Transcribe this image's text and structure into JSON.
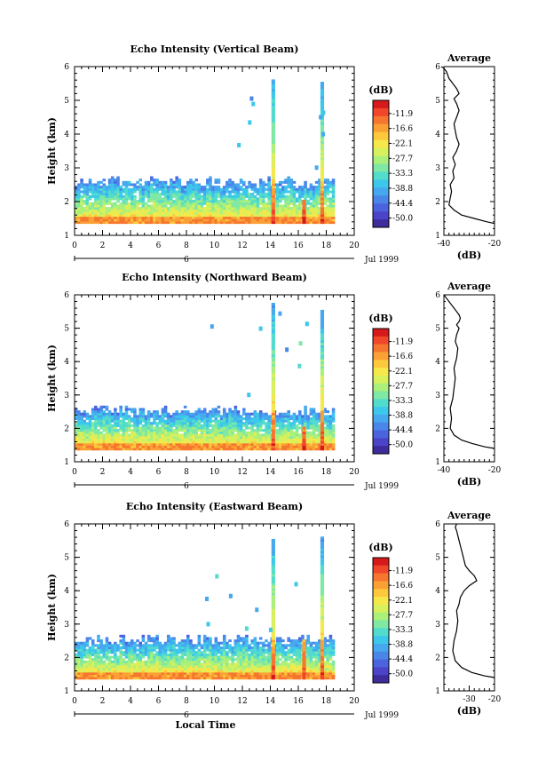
{
  "figure": {
    "date_label": "Jul 1999",
    "time_axis_label": "Local Time",
    "day_label": "6"
  },
  "colorbar": {
    "unit": "(dB)",
    "ticks": [
      "-11.9",
      "-16.6",
      "-22.1",
      "-27.7",
      "-33.3",
      "-38.8",
      "-44.4",
      "-50.0"
    ],
    "colors": [
      "#d7191c",
      "#f0462a",
      "#f6762f",
      "#fba035",
      "#fdc83c",
      "#f6e84a",
      "#d8f05c",
      "#aaf07a",
      "#7ee8a4",
      "#52dccc",
      "#3cc8ea",
      "#46a8ee",
      "#4a86ea",
      "#4b63de",
      "#4c44c8",
      "#3c2c9c"
    ]
  },
  "chart_data": [
    {
      "type": "heatmap",
      "title": "Echo Intensity (Vertical Beam)",
      "xlabel": "",
      "ylabel": "Height (km)",
      "xlim": [
        0,
        20
      ],
      "ylim": [
        1,
        6
      ],
      "xticks": [
        0,
        2,
        4,
        6,
        8,
        10,
        12,
        14,
        16,
        18,
        20
      ],
      "yticks": [
        1,
        2,
        3,
        4,
        5,
        6
      ],
      "layer_top_km": 2.55,
      "spikes": [
        {
          "time": 14.2,
          "top_km": 5.6
        },
        {
          "time": 16.4,
          "top_km": 2.0
        },
        {
          "time": 17.7,
          "top_km": 5.5
        }
      ],
      "data_end_time": 18.5,
      "color_unit": "dB"
    },
    {
      "type": "line",
      "title": "Average",
      "xlabel": "(dB)",
      "ylabel": "",
      "xlim": [
        -40,
        -20
      ],
      "xticks": [
        -40,
        -20
      ],
      "ylim": [
        1,
        6
      ],
      "yticks": [
        1,
        2,
        3,
        4,
        5,
        6
      ],
      "series": [
        {
          "x": [
            -20,
            -23,
            -28,
            -33,
            -36,
            -38,
            -37.5,
            -37,
            -37.5,
            -36,
            -36.5,
            -35.5,
            -36.5,
            -35,
            -34,
            -35,
            -35.5,
            -36,
            -35,
            -34,
            -35,
            -36,
            -34,
            -35,
            -36,
            -37,
            -38,
            -38.5,
            -39,
            -40,
            -41
          ],
          "y": [
            1.35,
            1.4,
            1.5,
            1.6,
            1.75,
            1.9,
            2.1,
            2.3,
            2.5,
            2.7,
            2.9,
            3.1,
            3.3,
            3.5,
            3.7,
            3.9,
            4.1,
            4.3,
            4.5,
            4.7,
            4.9,
            5.05,
            5.2,
            5.35,
            5.45,
            5.55,
            5.65,
            5.75,
            5.85,
            5.95,
            6.0
          ]
        }
      ]
    },
    {
      "type": "heatmap",
      "title": "Echo Intensity (Northward Beam)",
      "xlabel": "",
      "ylabel": "Height (km)",
      "xlim": [
        0,
        20
      ],
      "ylim": [
        1,
        6
      ],
      "xticks": [
        0,
        2,
        4,
        6,
        8,
        10,
        12,
        14,
        16,
        18,
        20
      ],
      "yticks": [
        1,
        2,
        3,
        4,
        5,
        6
      ],
      "layer_top_km": 2.5,
      "spikes": [
        {
          "time": 14.2,
          "top_km": 5.7
        },
        {
          "time": 16.4,
          "top_km": 2.0
        },
        {
          "time": 17.7,
          "top_km": 5.5
        }
      ],
      "data_end_time": 18.5,
      "color_unit": "dB"
    },
    {
      "type": "line",
      "title": "Average",
      "xlabel": "(dB)",
      "ylabel": "",
      "xlim": [
        -40,
        -20
      ],
      "xticks": [
        -40,
        -20
      ],
      "ylim": [
        1,
        6
      ],
      "yticks": [
        1,
        2,
        3,
        4,
        5,
        6
      ],
      "series": [
        {
          "x": [
            -20,
            -24,
            -29,
            -33,
            -36,
            -37.5,
            -37,
            -37.5,
            -36.5,
            -36,
            -35.5,
            -36,
            -35,
            -34.5,
            -35.5,
            -35,
            -34,
            -35,
            -34,
            -33.5,
            -34,
            -35,
            -36,
            -37,
            -38,
            -39,
            -40
          ],
          "y": [
            1.4,
            1.45,
            1.55,
            1.65,
            1.8,
            2.0,
            2.3,
            2.6,
            2.9,
            3.2,
            3.5,
            3.8,
            4.1,
            4.4,
            4.6,
            4.8,
            5.0,
            5.1,
            5.2,
            5.3,
            5.4,
            5.5,
            5.6,
            5.7,
            5.8,
            5.9,
            6.0
          ]
        }
      ]
    },
    {
      "type": "heatmap",
      "title": "Echo Intensity (Eastward Beam)",
      "xlabel": "Local Time",
      "ylabel": "Height (km)",
      "xlim": [
        0,
        20
      ],
      "ylim": [
        1,
        6
      ],
      "xticks": [
        0,
        2,
        4,
        6,
        8,
        10,
        12,
        14,
        16,
        18,
        20
      ],
      "yticks": [
        1,
        2,
        3,
        4,
        5,
        6
      ],
      "layer_top_km": 2.5,
      "spikes": [
        {
          "time": 14.2,
          "top_km": 5.5
        },
        {
          "time": 16.4,
          "top_km": 2.5
        },
        {
          "time": 17.7,
          "top_km": 5.6
        }
      ],
      "data_end_time": 18.5,
      "color_unit": "dB"
    },
    {
      "type": "line",
      "title": "Average",
      "xlabel": "(dB)",
      "ylabel": "",
      "xlim": [
        -40,
        -20
      ],
      "xticks": [
        -30,
        -20
      ],
      "ylim": [
        1,
        6
      ],
      "yticks": [
        1,
        2,
        3,
        4,
        5,
        6
      ],
      "series": [
        {
          "x": [
            -20,
            -24,
            -29,
            -33,
            -35.5,
            -36.5,
            -36,
            -35,
            -34.5,
            -35,
            -34,
            -33.5,
            -32,
            -30,
            -27,
            -28,
            -30,
            -31.5,
            -32,
            -32.5,
            -33,
            -33.5,
            -34,
            -34.5,
            -35,
            -35.5,
            -35
          ],
          "y": [
            1.4,
            1.45,
            1.55,
            1.7,
            1.9,
            2.2,
            2.5,
            2.8,
            3.1,
            3.4,
            3.6,
            3.8,
            4.0,
            4.15,
            4.3,
            4.45,
            4.6,
            4.75,
            4.9,
            5.05,
            5.2,
            5.35,
            5.5,
            5.65,
            5.8,
            5.9,
            6.0
          ]
        }
      ]
    }
  ]
}
